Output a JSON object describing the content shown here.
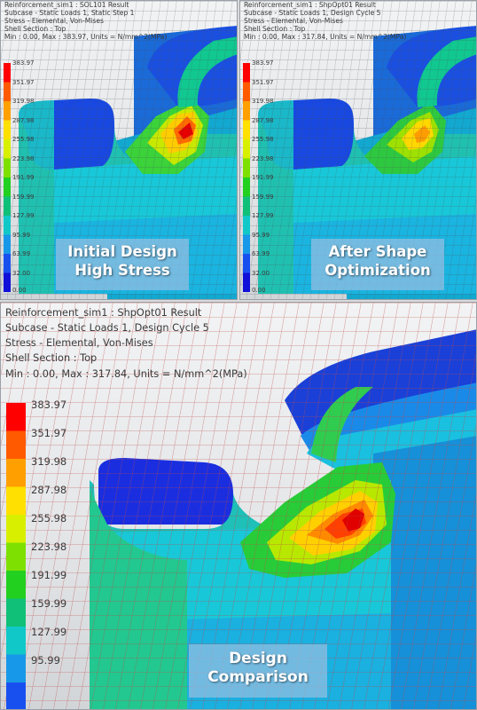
{
  "panels": {
    "top_left": {
      "header": [
        "Reinforcement_sim1 : SOL101 Result",
        "Subcase - Static Loads 1, Static Step 1",
        "Stress - Elemental, Von-Mises",
        "Shell Section : Top",
        "Min : 0.00, Max : 383.97, Units = N/mm^2(MPa)"
      ],
      "caption": [
        "Initial Design",
        "High Stress"
      ],
      "legend": [
        "383.97",
        "351.97",
        "319.98",
        "287.98",
        "255.98",
        "223.98",
        "191.99",
        "159.99",
        "127.99",
        "95.99",
        "63.99",
        "32.00",
        "0.00"
      ]
    },
    "top_right": {
      "header": [
        "Reinforcement_sim1 : ShpOpt01 Result",
        "Subcase - Static Loads 1, Design Cycle 5",
        "Stress - Elemental, Von-Mises",
        "Shell Section : Top",
        "Min : 0.00, Max : 317.84, Units = N/mm^2(MPa)"
      ],
      "caption": [
        "After Shape",
        "Optimization"
      ],
      "legend": [
        "383.97",
        "351.97",
        "319.98",
        "287.98",
        "255.98",
        "223.98",
        "191.99",
        "159.99",
        "127.99",
        "95.99",
        "63.99",
        "32.00",
        "0.00"
      ]
    },
    "bottom": {
      "header": [
        "Reinforcement_sim1 : ShpOpt01 Result",
        "Subcase - Static Loads 1, Design Cycle 5",
        "Stress - Elemental, Von-Mises",
        "Shell Section : Top",
        "Min : 0.00, Max : 317.84, Units = N/mm^2(MPa)"
      ],
      "caption": [
        "Design",
        "Comparison"
      ],
      "legend": [
        "383.97",
        "351.97",
        "319.98",
        "287.98",
        "255.98",
        "223.98",
        "191.99",
        "159.99",
        "127.99",
        "95.99"
      ]
    }
  },
  "colors": {
    "scale": [
      "#ff0000",
      "#ff5a00",
      "#ffa000",
      "#ffe000",
      "#d8f000",
      "#7ee000",
      "#22d020",
      "#10c078",
      "#10c8c8",
      "#1898e8",
      "#1850f0",
      "#1010d8"
    ],
    "caption_bg": "#96bee1",
    "mesh_line_top": "#48505a",
    "mesh_line_bottom": "#c04848"
  }
}
